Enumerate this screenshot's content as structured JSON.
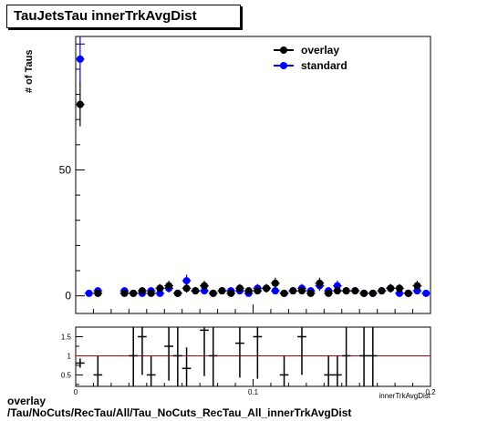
{
  "title": "TauJetsTau innerTrkAvgDist",
  "footer": {
    "line1": "overlay",
    "line2": "/Tau/NoCuts/RecTau/All/Tau_NoCuts_RecTau_All_innerTrkAvgDist"
  },
  "colors": {
    "overlay": "#000000",
    "standard": "#0000ff",
    "ratio_ref": "#c00000"
  },
  "chart_data": [
    {
      "type": "scatter",
      "title": "TauJetsTau innerTrkAvgDist",
      "xlabel": "innerTrkAvgDist",
      "ylabel": "# of Taus",
      "xlim": [
        0,
        0.2
      ],
      "ylim": [
        -7,
        103
      ],
      "yticks": [
        "0",
        "50"
      ],
      "legend_position": "top-right",
      "series": [
        {
          "name": "overlay",
          "x": [
            0.0025,
            0.0125,
            0.0275,
            0.0325,
            0.0375,
            0.0425,
            0.0475,
            0.0525,
            0.0575,
            0.0625,
            0.0675,
            0.0725,
            0.0775,
            0.0825,
            0.0875,
            0.0925,
            0.0975,
            0.1025,
            0.1075,
            0.1125,
            0.1175,
            0.1225,
            0.1275,
            0.1325,
            0.1375,
            0.1425,
            0.1475,
            0.1525,
            0.1575,
            0.1625,
            0.1675,
            0.1725,
            0.1775,
            0.1825,
            0.1875,
            0.1925
          ],
          "y": [
            76,
            1,
            1,
            1,
            2,
            1,
            3,
            4,
            1,
            3,
            2,
            4,
            1,
            2,
            1,
            3,
            2,
            2,
            3,
            5,
            1,
            2,
            2,
            1,
            5,
            1,
            2,
            2,
            2,
            1,
            1,
            2,
            3,
            3,
            1,
            4
          ],
          "err": [
            8.7,
            1,
            1,
            1,
            1.4,
            1,
            1.7,
            2,
            1,
            1.7,
            1.4,
            2,
            1,
            1.4,
            1,
            1.7,
            1.4,
            1.4,
            1.7,
            2.2,
            1,
            1.4,
            1.4,
            1,
            2.2,
            1,
            1.4,
            1.4,
            1.4,
            1,
            1,
            1.4,
            1.7,
            1.7,
            1,
            2
          ]
        },
        {
          "name": "standard",
          "x": [
            0.0025,
            0.0075,
            0.0125,
            0.0275,
            0.0325,
            0.0375,
            0.0425,
            0.0475,
            0.0525,
            0.0575,
            0.0625,
            0.0675,
            0.0725,
            0.0775,
            0.0825,
            0.0875,
            0.0925,
            0.0975,
            0.1025,
            0.1075,
            0.1125,
            0.1175,
            0.1225,
            0.1275,
            0.1325,
            0.1375,
            0.1425,
            0.1475,
            0.1525,
            0.1575,
            0.1625,
            0.1675,
            0.1725,
            0.1775,
            0.1825,
            0.1875,
            0.1925,
            0.1975
          ],
          "y": [
            94,
            1,
            2,
            2,
            1,
            1,
            2,
            1,
            3,
            1,
            6,
            2,
            2,
            1,
            2,
            2,
            2,
            1,
            3,
            3,
            2,
            1,
            2,
            3,
            2,
            4,
            2,
            4,
            2,
            2,
            1,
            1,
            2,
            3,
            1,
            1,
            2,
            1
          ],
          "err": [
            9.7,
            1,
            1.4,
            1.4,
            1,
            1,
            1.4,
            1,
            1.7,
            1,
            2.4,
            1.4,
            1.4,
            1,
            1.4,
            1.4,
            1.4,
            1,
            1.7,
            1.7,
            1.4,
            1,
            1.4,
            1.7,
            1.4,
            2,
            1.4,
            2,
            1.4,
            1.4,
            1,
            1,
            1.4,
            1.7,
            1,
            1,
            1.4,
            1
          ]
        }
      ]
    },
    {
      "type": "scatter",
      "title": "",
      "xlabel": "innerTrkAvgDist",
      "ylabel": "",
      "xlim": [
        0,
        0.2
      ],
      "ylim": [
        0.2,
        1.75
      ],
      "xticks": [
        "0",
        "0.1",
        "0.2"
      ],
      "yticks": [
        "0.5",
        "1",
        "1.5"
      ],
      "reference_line": 1,
      "series": [
        {
          "name": "",
          "x": [
            0.0025,
            0.0125,
            0.0325,
            0.0375,
            0.0425,
            0.0525,
            0.0575,
            0.0625,
            0.0725,
            0.0775,
            0.0925,
            0.1025,
            0.1175,
            0.1275,
            0.1425,
            0.1475,
            0.1525,
            0.1625,
            0.1675
          ],
          "y": [
            0.81,
            0.5,
            1.0,
            1.5,
            0.5,
            1.25,
            1.0,
            0.67,
            1.67,
            1.0,
            1.33,
            1.5,
            0.5,
            1.5,
            0.5,
            0.5,
            1.0,
            1.0,
            1.0
          ],
          "err": [
            0.12,
            0.5,
            1.0,
            1.0,
            0.5,
            0.9,
            1.0,
            0.55,
            1.2,
            1.0,
            0.9,
            1.1,
            0.5,
            1.0,
            0.5,
            0.5,
            0.8,
            1.0,
            1.0
          ]
        }
      ]
    }
  ]
}
